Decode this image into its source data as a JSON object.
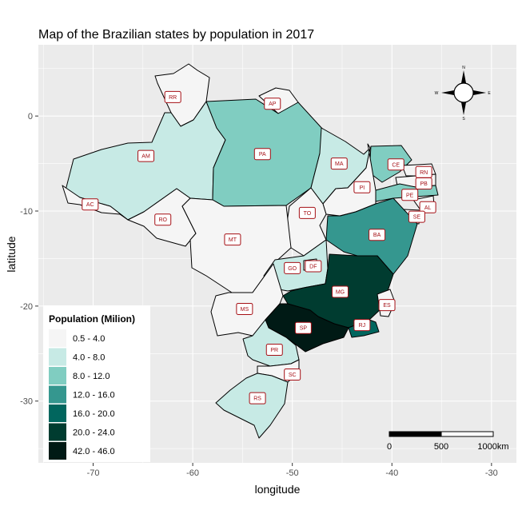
{
  "chart_data": {
    "type": "choropleth-map",
    "title": "Map of the Brazilian states by population in 2017",
    "xlabel": "longitude",
    "ylabel": "latitude",
    "xlim": [
      -75.5,
      -27.5
    ],
    "ylim": [
      -36.5,
      7.5
    ],
    "x_ticks": [
      -70,
      -60,
      -50,
      -40,
      -30
    ],
    "y_ticks": [
      0,
      -10,
      -20,
      -30
    ],
    "x_tick_labels": [
      "-70",
      "-60",
      "-50",
      "-40",
      "-30"
    ],
    "y_tick_labels": [
      "0",
      "-10",
      "-20",
      "-30"
    ],
    "grid": true,
    "legend": {
      "title": "Population (Milion)",
      "placement": "bottom-left",
      "classes": [
        {
          "label": "0.5 - 4.0",
          "color": "#f5f5f5"
        },
        {
          "label": "4.0 - 8.0",
          "color": "#c7eae5"
        },
        {
          "label": "8.0 - 12.0",
          "color": "#80cdc1"
        },
        {
          "label": "12.0 - 16.0",
          "color": "#35978f"
        },
        {
          "label": "16.0 - 20.0",
          "color": "#01665e"
        },
        {
          "label": "20.0 - 24.0",
          "color": "#003c30"
        },
        {
          "label": "42.0 - 46.0",
          "color": "#001a15"
        }
      ]
    },
    "states": [
      {
        "code": "RR",
        "class": 0,
        "label_lon": -62.0,
        "label_lat": 2.0
      },
      {
        "code": "AP",
        "class": 0,
        "label_lon": -52.0,
        "label_lat": 1.3
      },
      {
        "code": "AM",
        "class": 1,
        "label_lon": -64.7,
        "label_lat": -4.2
      },
      {
        "code": "PA",
        "class": 2,
        "label_lon": -53.0,
        "label_lat": -4.0
      },
      {
        "code": "MA",
        "class": 1,
        "label_lon": -45.3,
        "label_lat": -5.0
      },
      {
        "code": "CE",
        "class": 2,
        "label_lon": -39.6,
        "label_lat": -5.1
      },
      {
        "code": "RN",
        "class": 0,
        "label_lon": -36.8,
        "label_lat": -5.9
      },
      {
        "code": "PB",
        "class": 0,
        "label_lon": -36.8,
        "label_lat": -7.1
      },
      {
        "code": "PE",
        "class": 2,
        "label_lon": -38.2,
        "label_lat": -8.3
      },
      {
        "code": "AL",
        "class": 0,
        "label_lon": -36.4,
        "label_lat": -9.6
      },
      {
        "code": "SE",
        "class": 0,
        "label_lon": -37.5,
        "label_lat": -10.6
      },
      {
        "code": "PI",
        "class": 0,
        "label_lon": -43.0,
        "label_lat": -7.5
      },
      {
        "code": "AC",
        "class": 0,
        "label_lon": -70.3,
        "label_lat": -9.3
      },
      {
        "code": "RO",
        "class": 0,
        "label_lon": -63.0,
        "label_lat": -10.9
      },
      {
        "code": "TO",
        "class": 0,
        "label_lon": -48.5,
        "label_lat": -10.2
      },
      {
        "code": "BA",
        "class": 3,
        "label_lon": -41.5,
        "label_lat": -12.5
      },
      {
        "code": "MT",
        "class": 0,
        "label_lon": -56.0,
        "label_lat": -13.0
      },
      {
        "code": "GO",
        "class": 1,
        "label_lon": -50.0,
        "label_lat": -16.0
      },
      {
        "code": "DF",
        "class": 0,
        "label_lon": -47.9,
        "label_lat": -15.8
      },
      {
        "code": "MG",
        "class": 5,
        "label_lon": -45.2,
        "label_lat": -18.5
      },
      {
        "code": "ES",
        "class": 0,
        "label_lon": -40.5,
        "label_lat": -19.9
      },
      {
        "code": "MS",
        "class": 0,
        "label_lon": -54.8,
        "label_lat": -20.3
      },
      {
        "code": "SP",
        "class": 6,
        "label_lon": -48.9,
        "label_lat": -22.3
      },
      {
        "code": "RJ",
        "class": 4,
        "label_lon": -43.0,
        "label_lat": -22.0
      },
      {
        "code": "PR",
        "class": 1,
        "label_lon": -51.8,
        "label_lat": -24.6
      },
      {
        "code": "SC",
        "class": 0,
        "label_lon": -50.0,
        "label_lat": -27.2
      },
      {
        "code": "RS",
        "class": 1,
        "label_lon": -53.5,
        "label_lat": -29.7
      }
    ],
    "north_arrow": {
      "labels": [
        "N",
        "W",
        "E",
        "S"
      ]
    },
    "scale_bar": {
      "labels": [
        "0",
        "500",
        "1000km"
      ]
    }
  }
}
